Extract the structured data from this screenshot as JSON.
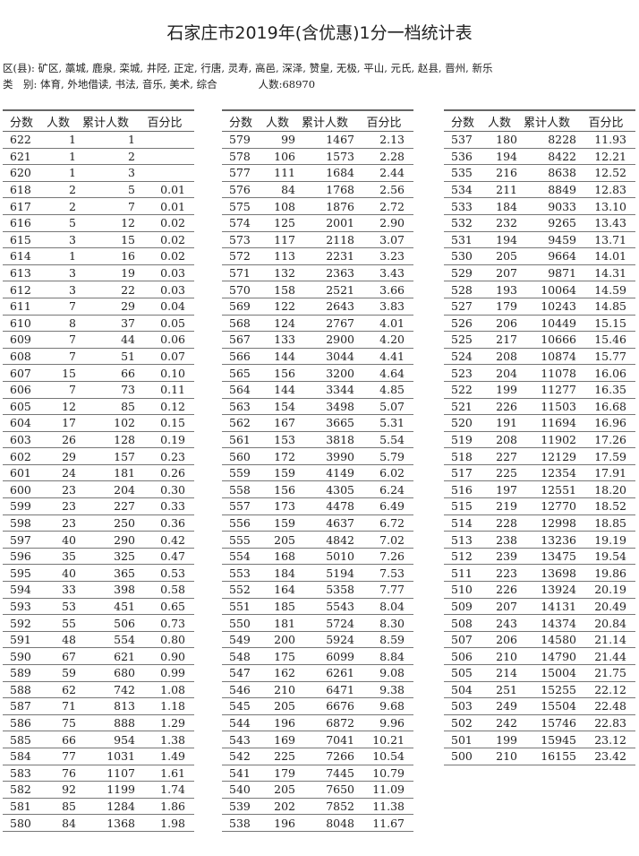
{
  "title": "石家庄市2019年(含优惠)1分一档统计表",
  "info": {
    "districts": "区(县): 矿区, 藁城, 鹿泉, 栾城, 井陉, 正定, 行唐, 灵寿, 高邑, 深泽, 赞皇, 无极, 平山, 元氏, 赵县, 晋州, 新乐",
    "categories": "类　别: 体育, 外地借读, 书法, 音乐, 美术, 综合",
    "count": "人数:68970"
  },
  "headers": [
    "分数",
    "人数",
    "累计人数",
    "百分比"
  ],
  "tables": [
    [
      [
        "622",
        "1",
        "1",
        ""
      ],
      [
        "621",
        "1",
        "2",
        ""
      ],
      [
        "620",
        "1",
        "3",
        ""
      ],
      [
        "618",
        "2",
        "5",
        "0.01"
      ],
      [
        "617",
        "2",
        "7",
        "0.01"
      ],
      [
        "616",
        "5",
        "12",
        "0.02"
      ],
      [
        "615",
        "3",
        "15",
        "0.02"
      ],
      [
        "614",
        "1",
        "16",
        "0.02"
      ],
      [
        "613",
        "3",
        "19",
        "0.03"
      ],
      [
        "612",
        "3",
        "22",
        "0.03"
      ],
      [
        "611",
        "7",
        "29",
        "0.04"
      ],
      [
        "610",
        "8",
        "37",
        "0.05"
      ],
      [
        "609",
        "7",
        "44",
        "0.06"
      ],
      [
        "608",
        "7",
        "51",
        "0.07"
      ],
      [
        "607",
        "15",
        "66",
        "0.10"
      ],
      [
        "606",
        "7",
        "73",
        "0.11"
      ],
      [
        "605",
        "12",
        "85",
        "0.12"
      ],
      [
        "604",
        "17",
        "102",
        "0.15"
      ],
      [
        "603",
        "26",
        "128",
        "0.19"
      ],
      [
        "602",
        "29",
        "157",
        "0.23"
      ],
      [
        "601",
        "24",
        "181",
        "0.26"
      ],
      [
        "600",
        "23",
        "204",
        "0.30"
      ],
      [
        "599",
        "23",
        "227",
        "0.33"
      ],
      [
        "598",
        "23",
        "250",
        "0.36"
      ],
      [
        "597",
        "40",
        "290",
        "0.42"
      ],
      [
        "596",
        "35",
        "325",
        "0.47"
      ],
      [
        "595",
        "40",
        "365",
        "0.53"
      ],
      [
        "594",
        "33",
        "398",
        "0.58"
      ],
      [
        "593",
        "53",
        "451",
        "0.65"
      ],
      [
        "592",
        "55",
        "506",
        "0.73"
      ],
      [
        "591",
        "48",
        "554",
        "0.80"
      ],
      [
        "590",
        "67",
        "621",
        "0.90"
      ],
      [
        "589",
        "59",
        "680",
        "0.99"
      ],
      [
        "588",
        "62",
        "742",
        "1.08"
      ],
      [
        "587",
        "71",
        "813",
        "1.18"
      ],
      [
        "586",
        "75",
        "888",
        "1.29"
      ],
      [
        "585",
        "66",
        "954",
        "1.38"
      ],
      [
        "584",
        "77",
        "1031",
        "1.49"
      ],
      [
        "583",
        "76",
        "1107",
        "1.61"
      ],
      [
        "582",
        "92",
        "1199",
        "1.74"
      ],
      [
        "581",
        "85",
        "1284",
        "1.86"
      ],
      [
        "580",
        "84",
        "1368",
        "1.98"
      ]
    ],
    [
      [
        "579",
        "99",
        "1467",
        "2.13"
      ],
      [
        "578",
        "106",
        "1573",
        "2.28"
      ],
      [
        "577",
        "111",
        "1684",
        "2.44"
      ],
      [
        "576",
        "84",
        "1768",
        "2.56"
      ],
      [
        "575",
        "108",
        "1876",
        "2.72"
      ],
      [
        "574",
        "125",
        "2001",
        "2.90"
      ],
      [
        "573",
        "117",
        "2118",
        "3.07"
      ],
      [
        "572",
        "113",
        "2231",
        "3.23"
      ],
      [
        "571",
        "132",
        "2363",
        "3.43"
      ],
      [
        "570",
        "158",
        "2521",
        "3.66"
      ],
      [
        "569",
        "122",
        "2643",
        "3.83"
      ],
      [
        "568",
        "124",
        "2767",
        "4.01"
      ],
      [
        "567",
        "133",
        "2900",
        "4.20"
      ],
      [
        "566",
        "144",
        "3044",
        "4.41"
      ],
      [
        "565",
        "156",
        "3200",
        "4.64"
      ],
      [
        "564",
        "144",
        "3344",
        "4.85"
      ],
      [
        "563",
        "154",
        "3498",
        "5.07"
      ],
      [
        "562",
        "167",
        "3665",
        "5.31"
      ],
      [
        "561",
        "153",
        "3818",
        "5.54"
      ],
      [
        "560",
        "172",
        "3990",
        "5.79"
      ],
      [
        "559",
        "159",
        "4149",
        "6.02"
      ],
      [
        "558",
        "156",
        "4305",
        "6.24"
      ],
      [
        "557",
        "173",
        "4478",
        "6.49"
      ],
      [
        "556",
        "159",
        "4637",
        "6.72"
      ],
      [
        "555",
        "205",
        "4842",
        "7.02"
      ],
      [
        "554",
        "168",
        "5010",
        "7.26"
      ],
      [
        "553",
        "184",
        "5194",
        "7.53"
      ],
      [
        "552",
        "164",
        "5358",
        "7.77"
      ],
      [
        "551",
        "185",
        "5543",
        "8.04"
      ],
      [
        "550",
        "181",
        "5724",
        "8.30"
      ],
      [
        "549",
        "200",
        "5924",
        "8.59"
      ],
      [
        "548",
        "175",
        "6099",
        "8.84"
      ],
      [
        "547",
        "162",
        "6261",
        "9.08"
      ],
      [
        "546",
        "210",
        "6471",
        "9.38"
      ],
      [
        "545",
        "205",
        "6676",
        "9.68"
      ],
      [
        "544",
        "196",
        "6872",
        "9.96"
      ],
      [
        "543",
        "169",
        "7041",
        "10.21"
      ],
      [
        "542",
        "225",
        "7266",
        "10.54"
      ],
      [
        "541",
        "179",
        "7445",
        "10.79"
      ],
      [
        "540",
        "205",
        "7650",
        "11.09"
      ],
      [
        "539",
        "202",
        "7852",
        "11.38"
      ],
      [
        "538",
        "196",
        "8048",
        "11.67"
      ]
    ],
    [
      [
        "537",
        "180",
        "8228",
        "11.93"
      ],
      [
        "536",
        "194",
        "8422",
        "12.21"
      ],
      [
        "535",
        "216",
        "8638",
        "12.52"
      ],
      [
        "534",
        "211",
        "8849",
        "12.83"
      ],
      [
        "533",
        "184",
        "9033",
        "13.10"
      ],
      [
        "532",
        "232",
        "9265",
        "13.43"
      ],
      [
        "531",
        "194",
        "9459",
        "13.71"
      ],
      [
        "530",
        "205",
        "9664",
        "14.01"
      ],
      [
        "529",
        "207",
        "9871",
        "14.31"
      ],
      [
        "528",
        "193",
        "10064",
        "14.59"
      ],
      [
        "527",
        "179",
        "10243",
        "14.85"
      ],
      [
        "526",
        "206",
        "10449",
        "15.15"
      ],
      [
        "525",
        "217",
        "10666",
        "15.46"
      ],
      [
        "524",
        "208",
        "10874",
        "15.77"
      ],
      [
        "523",
        "204",
        "11078",
        "16.06"
      ],
      [
        "522",
        "199",
        "11277",
        "16.35"
      ],
      [
        "521",
        "226",
        "11503",
        "16.68"
      ],
      [
        "520",
        "191",
        "11694",
        "16.96"
      ],
      [
        "519",
        "208",
        "11902",
        "17.26"
      ],
      [
        "518",
        "227",
        "12129",
        "17.59"
      ],
      [
        "517",
        "225",
        "12354",
        "17.91"
      ],
      [
        "516",
        "197",
        "12551",
        "18.20"
      ],
      [
        "515",
        "219",
        "12770",
        "18.52"
      ],
      [
        "514",
        "228",
        "12998",
        "18.85"
      ],
      [
        "513",
        "238",
        "13236",
        "19.19"
      ],
      [
        "512",
        "239",
        "13475",
        "19.54"
      ],
      [
        "511",
        "223",
        "13698",
        "19.86"
      ],
      [
        "510",
        "226",
        "13924",
        "20.19"
      ],
      [
        "509",
        "207",
        "14131",
        "20.49"
      ],
      [
        "508",
        "243",
        "14374",
        "20.84"
      ],
      [
        "507",
        "206",
        "14580",
        "21.14"
      ],
      [
        "506",
        "210",
        "14790",
        "21.44"
      ],
      [
        "505",
        "214",
        "15004",
        "21.75"
      ],
      [
        "504",
        "251",
        "15255",
        "22.12"
      ],
      [
        "503",
        "249",
        "15504",
        "22.48"
      ],
      [
        "502",
        "242",
        "15746",
        "22.83"
      ],
      [
        "501",
        "199",
        "15945",
        "23.12"
      ],
      [
        "500",
        "210",
        "16155",
        "23.42"
      ]
    ]
  ]
}
